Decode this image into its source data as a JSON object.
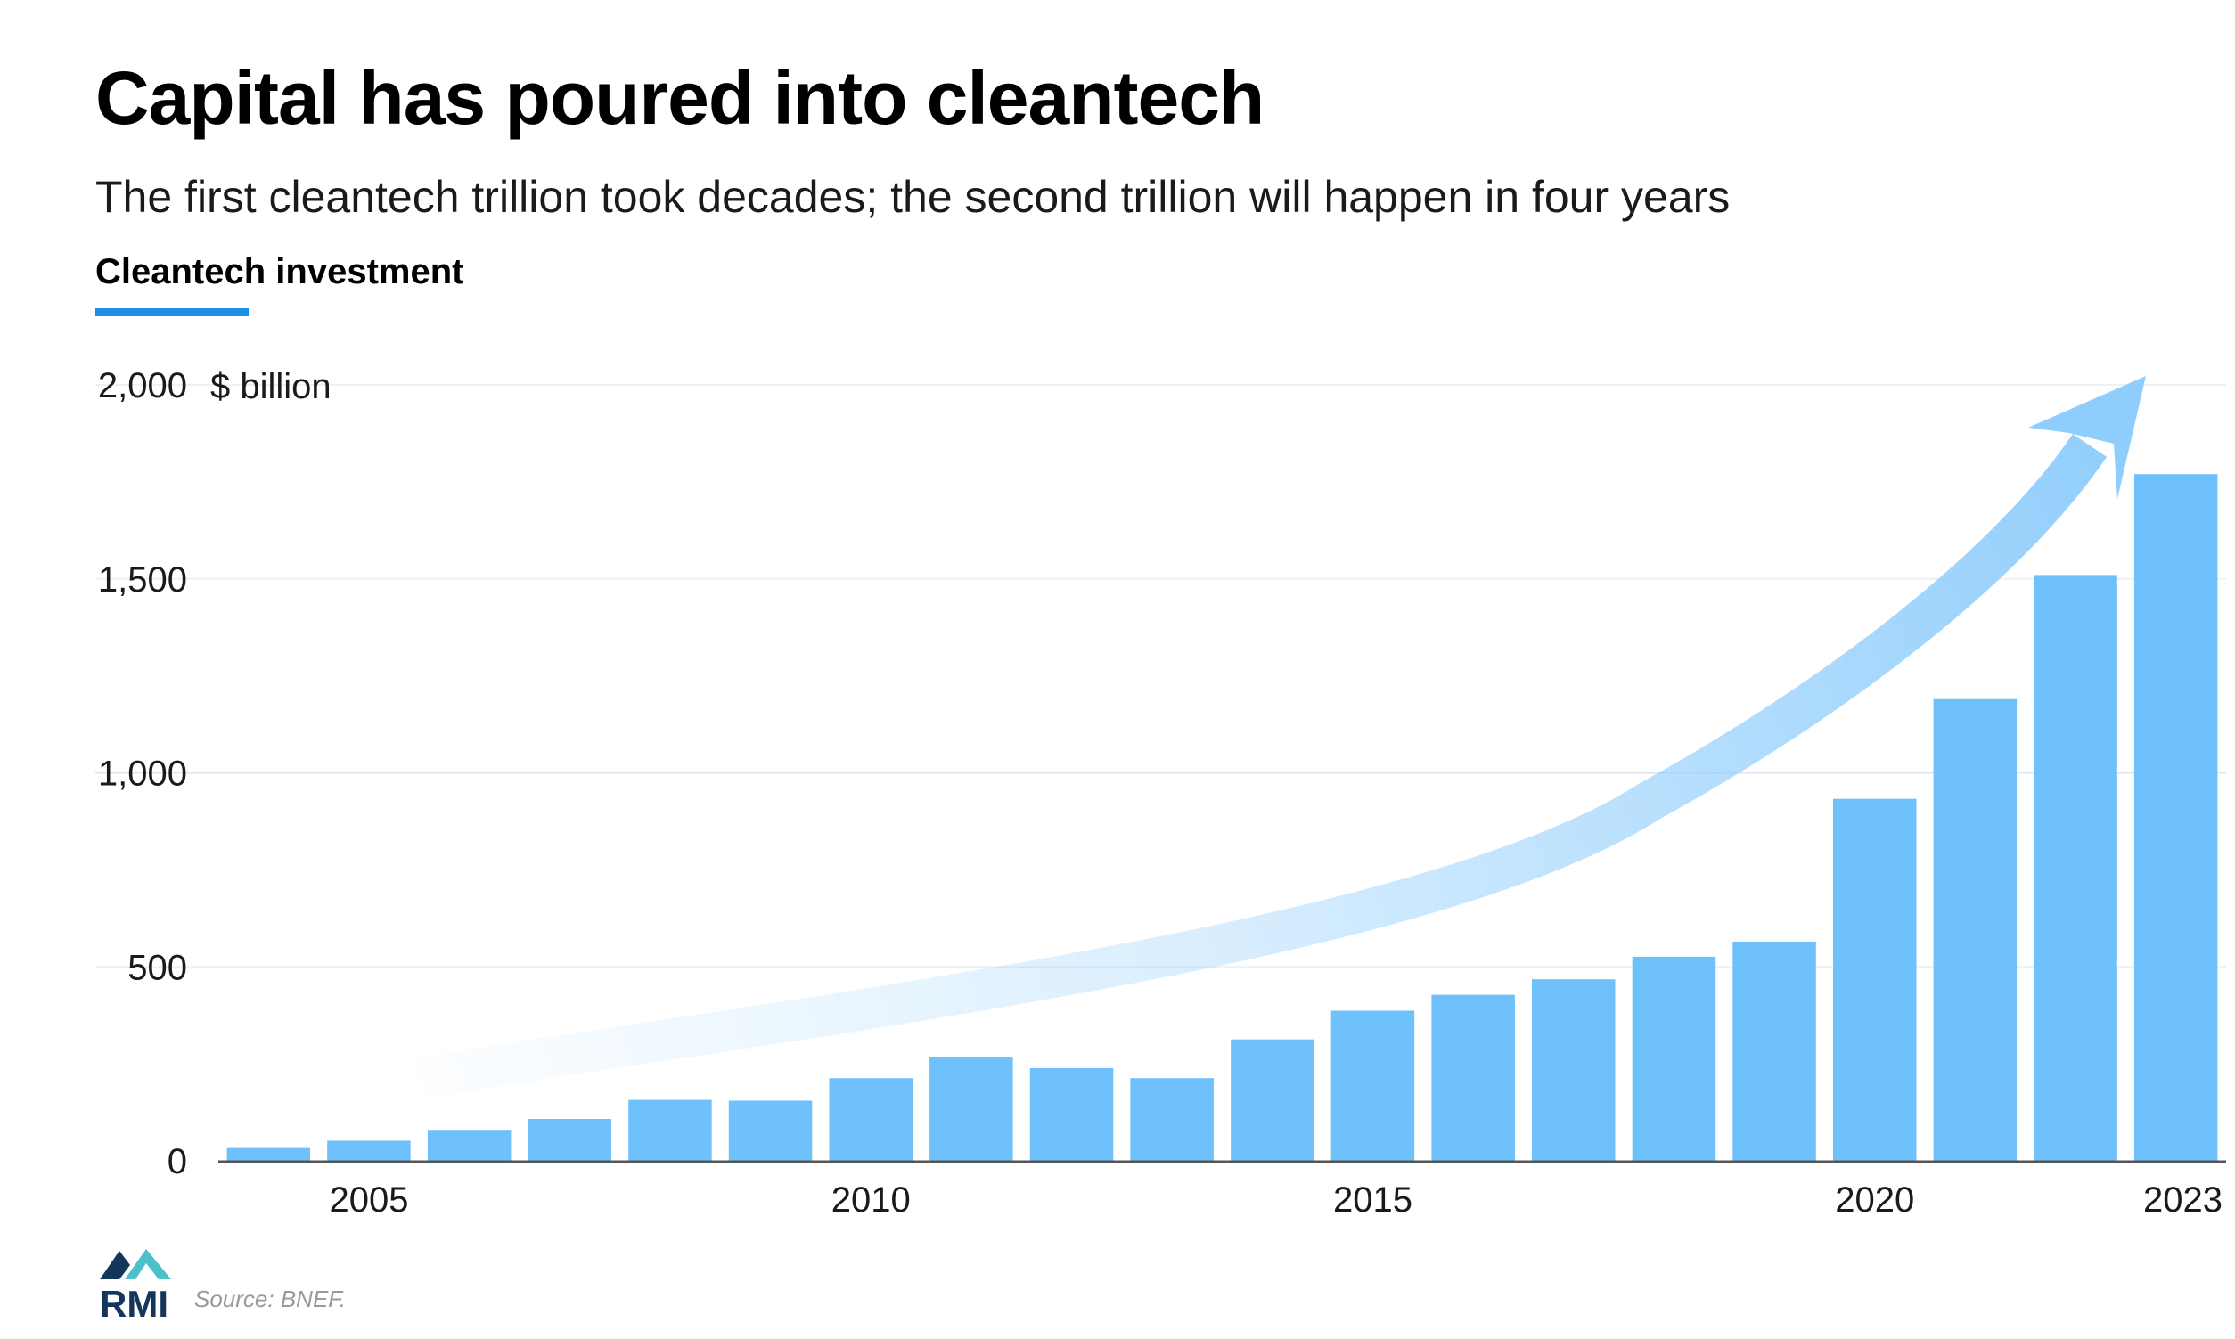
{
  "header": {
    "title": "Capital has poured into cleantech",
    "subtitle": "The first cleantech trillion took decades; the second trillion will happen in four years",
    "section_label": "Cleantech investment"
  },
  "footer": {
    "source": "Source: BNEF.",
    "logo_text": "RMI"
  },
  "colors": {
    "bar": "#6ec1fb",
    "accent": "#1e90e6",
    "arrow": "#8fcdfc",
    "logo_dark": "#13365a",
    "logo_teal": "#4cc0c8"
  },
  "chart_data": {
    "type": "bar",
    "unit_label": "$ billion",
    "categories": [
      "2004",
      "2005",
      "2006",
      "2007",
      "2008",
      "2009",
      "2010",
      "2011",
      "2012",
      "2013",
      "2014",
      "2015",
      "2016",
      "2017",
      "2018",
      "2019",
      "2020",
      "2021",
      "2022",
      "2023"
    ],
    "values": [
      33,
      52,
      80,
      108,
      157,
      155,
      213,
      267,
      239,
      213,
      313,
      387,
      428,
      468,
      526,
      565,
      933,
      1190,
      1510,
      1770
    ],
    "x_tick_labels": [
      "2005",
      "2010",
      "2015",
      "2020",
      "2023"
    ],
    "y_ticks": [
      0,
      500,
      1000,
      1500,
      2000
    ],
    "y_tick_labels": [
      "0",
      "500",
      "1,000",
      "1,500",
      "2,000"
    ],
    "ylim": [
      0,
      2000
    ],
    "grid": true,
    "annotation": "upward trend arrow"
  }
}
